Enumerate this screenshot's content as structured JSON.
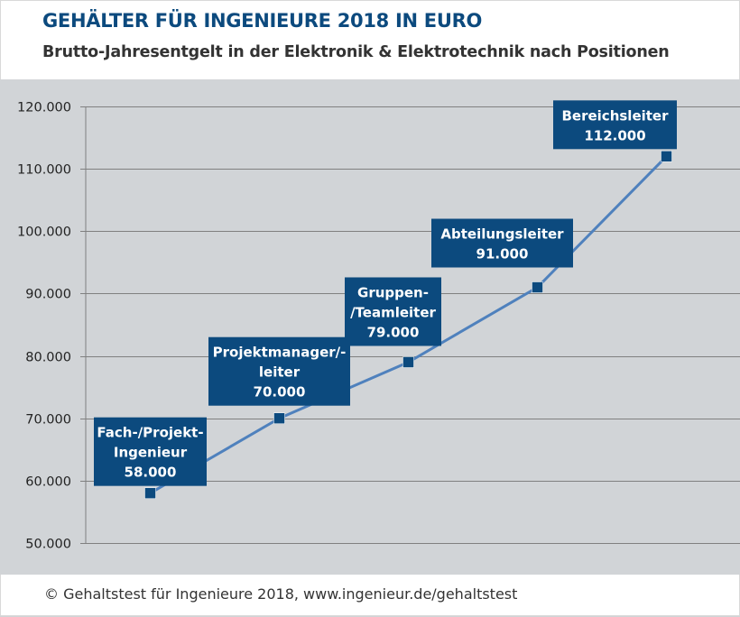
{
  "header": {
    "title": "GEHÄLTER FÜR INGENIEURE 2018 IN EURO",
    "subtitle": "Brutto-Jahresentgelt in der Elektronik & Elektrotechnik nach Positionen"
  },
  "footer": {
    "text": "© Gehaltstest für Ingenieure 2018, www.ingenieur.de/gehaltstest"
  },
  "colors": {
    "title": "#0c4a7e",
    "plot_background": "#d1d4d7",
    "line": "#4f81bd",
    "marker": "#0c4a7e",
    "label_box": "#0c4a7e",
    "gridline": "#808080"
  },
  "chart_data": {
    "type": "line",
    "title": "GEHÄLTER FÜR INGENIEURE 2018 IN EURO",
    "subtitle": "Brutto-Jahresentgelt in der Elektronik & Elektrotechnik nach Positionen",
    "xlabel": "",
    "ylabel": "",
    "categories": [
      "Fach-/Projekt-Ingenieur",
      "Projektmanager/-leiter",
      "Gruppen-/Teamleiter",
      "Abteilungsleiter",
      "Bereichsleiter"
    ],
    "series": [
      {
        "name": "Brutto-Jahresentgelt",
        "values": [
          58000,
          70000,
          79000,
          91000,
          112000
        ]
      }
    ],
    "data_labels": [
      {
        "lines": [
          "Fach-/Projekt-",
          "Ingenieur",
          "58.000"
        ]
      },
      {
        "lines": [
          "Projektmanager/-",
          "leiter",
          "70.000"
        ]
      },
      {
        "lines": [
          "Gruppen-",
          "/Teamleiter",
          "79.000"
        ]
      },
      {
        "lines": [
          "Abteilungsleiter",
          "91.000"
        ]
      },
      {
        "lines": [
          "Bereichsleiter",
          "112.000"
        ]
      }
    ],
    "ylim": [
      50000,
      120000
    ],
    "yticks": [
      50000,
      60000,
      70000,
      80000,
      90000,
      100000,
      110000,
      120000
    ],
    "ytick_labels": [
      "50.000",
      "60.000",
      "70.000",
      "80.000",
      "90.000",
      "100.000",
      "110.000",
      "120.000"
    ],
    "grid": true,
    "legend": "none",
    "source": "© Gehaltstest für Ingenieure 2018, www.ingenieur.de/gehaltstest"
  }
}
